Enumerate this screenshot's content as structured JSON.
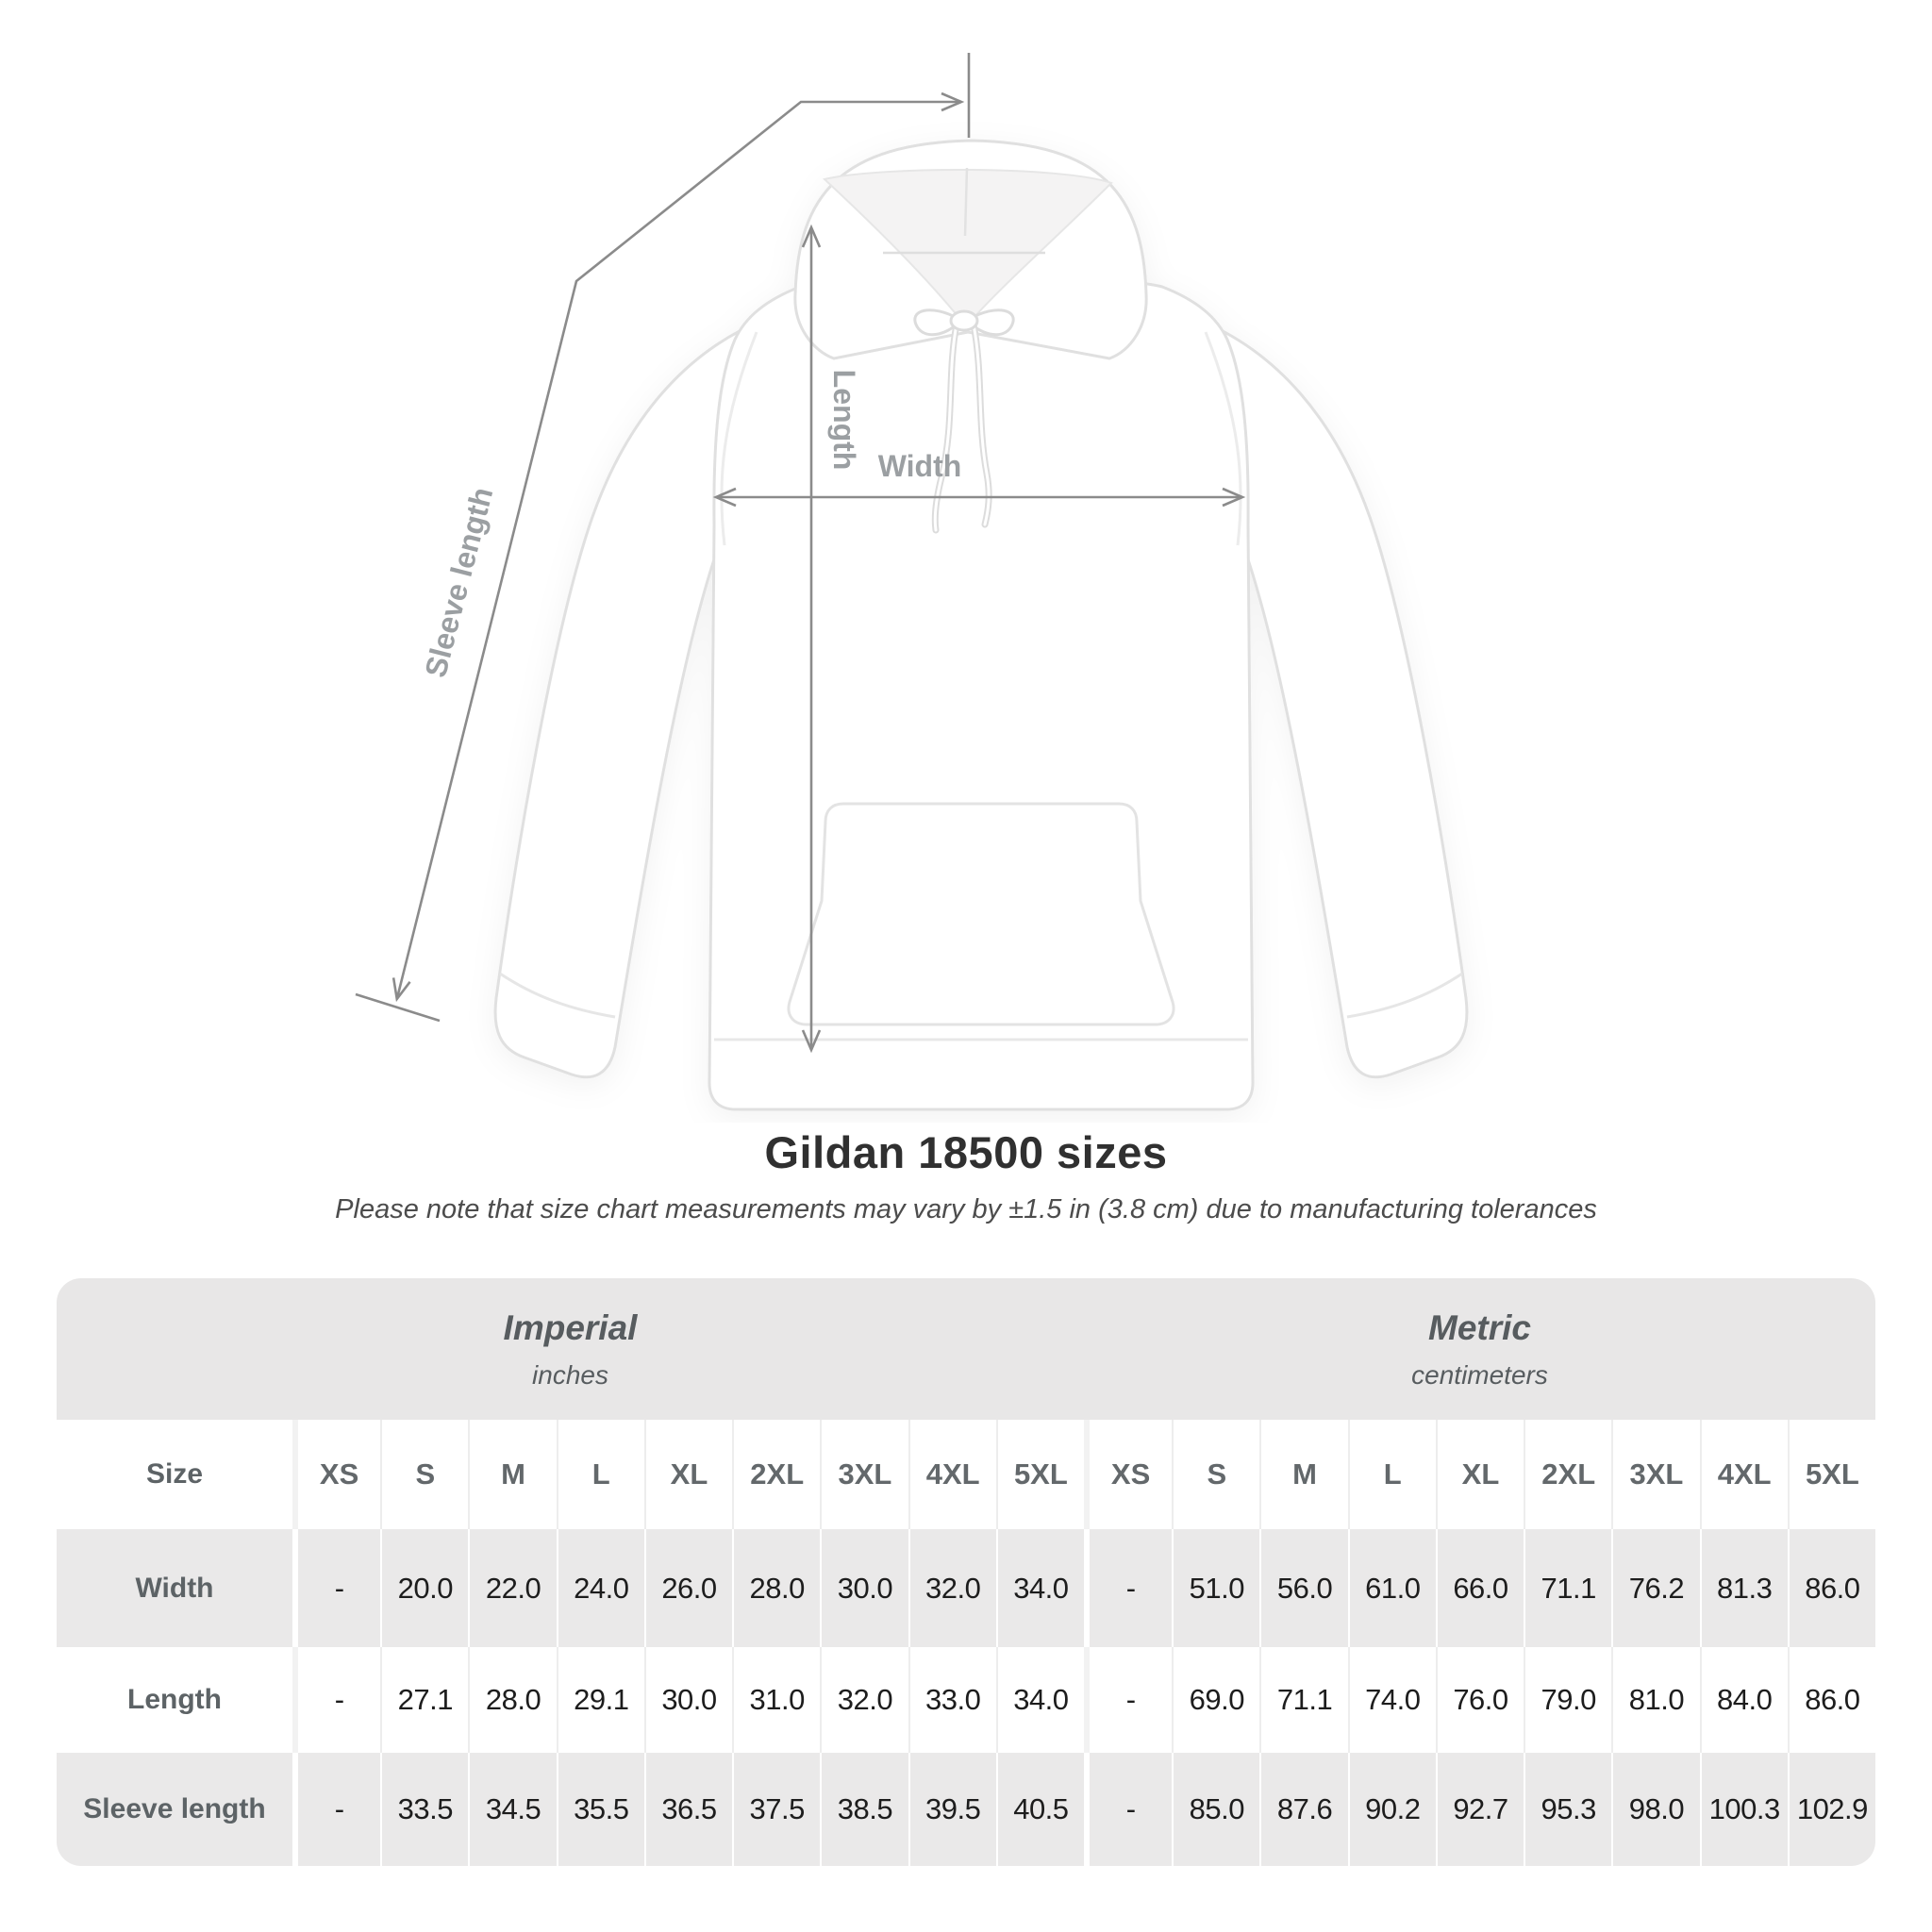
{
  "title": "Gildan 18500 sizes",
  "subtitle": "Please note that size chart measurements may vary by ±1.5 in (3.8 cm) due to manufacturing tolerances",
  "diagram": {
    "length_label": "Length",
    "width_label": "Width",
    "sleeve_label": "Sleeve length",
    "line_color": "#8b8b8b",
    "label_color": "#9b9fa2"
  },
  "table": {
    "sections": [
      {
        "title": "Imperial",
        "unit": "inches"
      },
      {
        "title": "Metric",
        "unit": "centimeters"
      }
    ],
    "size_row_label": "Size",
    "columns": [
      "XS",
      "S",
      "M",
      "L",
      "XL",
      "2XL",
      "3XL",
      "4XL",
      "5XL",
      "XS",
      "S",
      "M",
      "L",
      "XL",
      "2XL",
      "3XL",
      "4XL",
      "5XL"
    ],
    "rows": [
      {
        "label": "Width",
        "values": [
          "-",
          "20.0",
          "22.0",
          "24.0",
          "26.0",
          "28.0",
          "30.0",
          "32.0",
          "34.0",
          "-",
          "51.0",
          "56.0",
          "61.0",
          "66.0",
          "71.1",
          "76.2",
          "81.3",
          "86.0"
        ]
      },
      {
        "label": "Length",
        "values": [
          "-",
          "27.1",
          "28.0",
          "29.1",
          "30.0",
          "31.0",
          "32.0",
          "33.0",
          "34.0",
          "-",
          "69.0",
          "71.1",
          "74.0",
          "76.0",
          "79.0",
          "81.0",
          "84.0",
          "86.0"
        ]
      },
      {
        "label": "Sleeve length",
        "values": [
          "-",
          "33.5",
          "34.5",
          "35.5",
          "36.5",
          "37.5",
          "38.5",
          "39.5",
          "40.5",
          "-",
          "85.0",
          "87.6",
          "90.2",
          "92.7",
          "95.3",
          "98.0",
          "100.3",
          "102.9"
        ]
      }
    ],
    "colors": {
      "band": "#e8e7e7",
      "row_gray": "#eae9e9",
      "label_text": "#5d6366",
      "value_text": "#1d1d1d"
    }
  },
  "chart_data": {
    "type": "table",
    "title": "Gildan 18500 sizes",
    "note": "Please note that size chart measurements may vary by ±1.5 in (3.8 cm) due to manufacturing tolerances",
    "sizes": [
      "XS",
      "S",
      "M",
      "L",
      "XL",
      "2XL",
      "3XL",
      "4XL",
      "5XL"
    ],
    "measurements": [
      "Width",
      "Length",
      "Sleeve length"
    ],
    "imperial_inches": {
      "Width": [
        null,
        20.0,
        22.0,
        24.0,
        26.0,
        28.0,
        30.0,
        32.0,
        34.0
      ],
      "Length": [
        null,
        27.1,
        28.0,
        29.1,
        30.0,
        31.0,
        32.0,
        33.0,
        34.0
      ],
      "Sleeve length": [
        null,
        33.5,
        34.5,
        35.5,
        36.5,
        37.5,
        38.5,
        39.5,
        40.5
      ]
    },
    "metric_centimeters": {
      "Width": [
        null,
        51.0,
        56.0,
        61.0,
        66.0,
        71.1,
        76.2,
        81.3,
        86.0
      ],
      "Length": [
        null,
        69.0,
        71.1,
        74.0,
        76.0,
        79.0,
        81.0,
        84.0,
        86.0
      ],
      "Sleeve length": [
        null,
        85.0,
        87.6,
        90.2,
        92.7,
        95.3,
        98.0,
        100.3,
        102.9
      ]
    }
  }
}
